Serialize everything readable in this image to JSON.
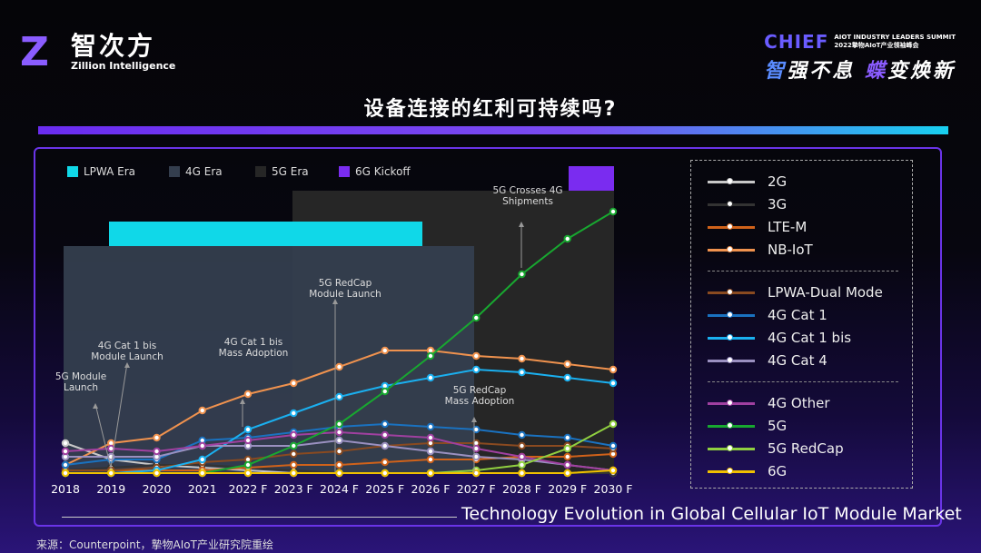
{
  "header": {
    "logo_cn": "智次方",
    "logo_en": "Zillion Intelligence",
    "event_logo": "CHIEF",
    "event_sub_en": "AIOT INDUSTRY  LEADERS SUMMIT",
    "event_sub_cn": "2022摯物AIoT产业领袖峰会",
    "slogan_part1": "智",
    "slogan_part2": "强不息 ",
    "slogan_part3": "蝶",
    "slogan_part4": "变焕新",
    "title": "设备连接的红利可持续吗?"
  },
  "eras": [
    {
      "label": "LPWA Era",
      "color": "#10d8e8"
    },
    {
      "label": "4G Era",
      "color": "#343e4e"
    },
    {
      "label": "5G Era",
      "color": "#262626"
    },
    {
      "label": "6G Kickoff",
      "color": "#7a2cf0"
    }
  ],
  "chart_data": {
    "type": "line",
    "title": "Technology Evolution in Global Cellular IoT Module Market",
    "xlabel": "",
    "ylabel": "",
    "categories": [
      "2018",
      "2019",
      "2020",
      "2021",
      "2022 F",
      "2023 F",
      "2024 F",
      "2025 F",
      "2026 F",
      "2027 F",
      "2028 F",
      "2029 F",
      "2030 F"
    ],
    "ylim": [
      0,
      100
    ],
    "grid": false,
    "legend": "right",
    "series": [
      {
        "name": "2G",
        "color": "#c8c8c8",
        "values": [
          11,
          5,
          3,
          2,
          1,
          0,
          0,
          0,
          0,
          0,
          0,
          0,
          0
        ]
      },
      {
        "name": "3G",
        "color": "#333333",
        "values": [
          1,
          2,
          3,
          3,
          2,
          1,
          0,
          0,
          0,
          0,
          0,
          0,
          0
        ]
      },
      {
        "name": "LTE-M",
        "color": "#d0621a",
        "values": [
          1,
          1,
          1,
          1,
          2,
          3,
          3,
          4,
          5,
          5,
          6,
          6,
          7
        ]
      },
      {
        "name": "NB-IoT",
        "color": "#f0924e",
        "values": [
          3,
          11,
          13,
          23,
          29,
          33,
          39,
          45,
          45,
          43,
          42,
          40,
          38
        ]
      },
      {
        "name": "LPWA-Dual Mode",
        "color": "#8a4a20",
        "values": [
          1,
          1,
          2,
          4,
          5,
          7,
          8,
          10,
          11,
          11,
          10,
          10,
          9
        ]
      },
      {
        "name": "4G Cat 1",
        "color": "#1a72c0",
        "values": [
          3,
          5,
          5,
          12,
          13,
          15,
          17,
          18,
          17,
          16,
          14,
          13,
          10
        ]
      },
      {
        "name": "4G Cat 1 bis",
        "color": "#1ab0f0",
        "values": [
          0,
          0,
          1,
          5,
          16,
          22,
          28,
          32,
          35,
          38,
          37,
          35,
          33
        ]
      },
      {
        "name": "4G Cat 4",
        "color": "#9a90c0",
        "values": [
          6,
          6,
          6,
          10,
          10,
          10,
          12,
          10,
          8,
          6,
          5,
          3,
          1
        ]
      },
      {
        "name": "4G Other",
        "color": "#a040a0",
        "values": [
          8,
          9,
          8,
          10,
          12,
          14,
          15,
          14,
          13,
          9,
          6,
          3,
          1
        ]
      },
      {
        "name": "5G",
        "color": "#18a830",
        "values": [
          0,
          0,
          0,
          0,
          3,
          10,
          18,
          30,
          43,
          57,
          73,
          86,
          96
        ]
      },
      {
        "name": "5G RedCap",
        "color": "#90d040",
        "values": [
          0,
          0,
          0,
          0,
          0,
          0,
          0,
          0,
          0,
          1,
          3,
          9,
          18
        ]
      },
      {
        "name": "6G",
        "color": "#f0c000",
        "values": [
          0,
          0,
          0,
          0,
          0,
          0,
          0,
          0,
          0,
          0,
          0,
          0,
          1
        ]
      }
    ],
    "annotations": [
      {
        "text": [
          "5G Module",
          "Launch"
        ],
        "x": "2019"
      },
      {
        "text": [
          "4G Cat 1 bis",
          "Module Launch"
        ],
        "x": "2019"
      },
      {
        "text": [
          "4G Cat 1 bis",
          "Mass Adoption"
        ],
        "x": "2022 F"
      },
      {
        "text": [
          "5G RedCap",
          "Module Launch"
        ],
        "x": "2024 F"
      },
      {
        "text": [
          "5G RedCap",
          "Mass Adoption"
        ],
        "x": "2027 F"
      },
      {
        "text": [
          "5G Crosses 4G",
          "Shipments"
        ],
        "x": "2028 F"
      }
    ]
  },
  "source": "来源：Counterpoint，摯物AIoT产业研究院重绘"
}
